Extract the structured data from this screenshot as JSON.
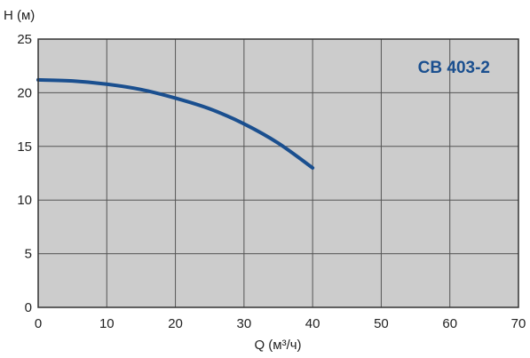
{
  "chart_data": {
    "type": "line",
    "title": "",
    "annotation": "СВ 403-2",
    "xlabel": "Q (м³/ч)",
    "ylabel": "H (м)",
    "xlim": [
      0,
      70
    ],
    "ylim": [
      0,
      25
    ],
    "x_ticks": [
      "0",
      "10",
      "20",
      "30",
      "40",
      "50",
      "60",
      "70"
    ],
    "y_ticks": [
      "0",
      "5",
      "10",
      "15",
      "20",
      "25"
    ],
    "grid": true,
    "colors": {
      "plot_background": "#cccccc",
      "grid": "#555555",
      "line": "#1a4f8f",
      "label": "#1a4f8f"
    },
    "series": [
      {
        "x": [
          0,
          5,
          10,
          15,
          20,
          25,
          30,
          35,
          40
        ],
        "y": [
          21.2,
          21.1,
          20.8,
          20.3,
          19.5,
          18.5,
          17.1,
          15.3,
          13.0
        ]
      }
    ]
  }
}
